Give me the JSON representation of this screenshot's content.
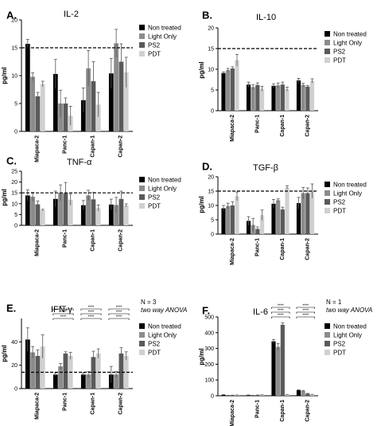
{
  "colors": {
    "non_treated": "#000000",
    "light_only": "#8c8c8c",
    "ps2": "#5a5a5a",
    "pdt": "#d0d0d0"
  },
  "chart_data": [
    {
      "type": "bar",
      "panel": "A.",
      "title": "IL-2",
      "ylabel": "pg/ml",
      "categories": [
        "Miapaca-2",
        "Panc-1",
        "Capan-1",
        "Capan-2"
      ],
      "ylim": [
        0,
        20
      ],
      "yticks": [
        "0",
        "5",
        "10",
        "15",
        "20"
      ],
      "threshold": 15,
      "legend": [
        "Non treated",
        "Light Only",
        "PS2",
        "PDT"
      ],
      "series": [
        {
          "name": "Non treated",
          "values": [
            15.7,
            10.3,
            5.6,
            10.4
          ],
          "errors": [
            0.8,
            2.6,
            2.2,
            2.7
          ]
        },
        {
          "name": "Light Only",
          "values": [
            9.8,
            5.0,
            11.3,
            15.8
          ],
          "errors": [
            0.7,
            2.4,
            3.2,
            2.5
          ]
        },
        {
          "name": "PS2",
          "values": [
            6.3,
            5.0,
            9.0,
            12.5
          ],
          "errors": [
            0.7,
            1.0,
            3.5,
            3.2
          ]
        },
        {
          "name": "PDT",
          "values": [
            8.5,
            2.8,
            4.8,
            10.6
          ],
          "errors": [
            0.5,
            1.7,
            2.2,
            2.7
          ]
        }
      ],
      "annotations": []
    },
    {
      "type": "bar",
      "panel": "B.",
      "title": "IL-10",
      "ylabel": "pg/ml",
      "categories": [
        "Miapaca-2",
        "Panc-1",
        "Capan-1",
        "Capan-2"
      ],
      "ylim": [
        0,
        20
      ],
      "yticks": [
        "0",
        "5",
        "10",
        "15",
        "20"
      ],
      "threshold": 15,
      "legend": [
        "Non treated",
        "Light Only",
        "PS2",
        "PDT"
      ],
      "series": [
        {
          "name": "Non treated",
          "values": [
            9.1,
            6.3,
            6.0,
            7.3
          ],
          "errors": [
            0.3,
            0.6,
            0.5,
            0.5
          ]
        },
        {
          "name": "Light Only",
          "values": [
            9.8,
            5.7,
            6.1,
            6.2
          ],
          "errors": [
            0.4,
            0.6,
            0.6,
            0.4
          ]
        },
        {
          "name": "PS2",
          "values": [
            10.2,
            6.2,
            6.3,
            5.8
          ],
          "errors": [
            0.4,
            0.5,
            0.6,
            0.3
          ]
        },
        {
          "name": "PDT",
          "values": [
            12.2,
            5.3,
            5.2,
            7.2
          ],
          "errors": [
            1.4,
            0.6,
            0.5,
            0.5
          ]
        }
      ],
      "annotations": []
    },
    {
      "type": "bar",
      "panel": "C.",
      "title": "TNF-α",
      "ylabel": "pg/ml",
      "categories": [
        "Miapaca-2",
        "Panc-1",
        "Capan-1",
        "Capan-2"
      ],
      "ylim": [
        0,
        25
      ],
      "yticks": [
        "0",
        "5",
        "10",
        "15",
        "20",
        "25"
      ],
      "threshold": 15,
      "legend": [
        "Non treated",
        "Light Only",
        "PS2",
        "PDT"
      ],
      "series": [
        {
          "name": "Non treated",
          "values": [
            13.8,
            12.2,
            9.3,
            9.6
          ],
          "errors": [
            2.6,
            3.6,
            2.2,
            2.5
          ]
        },
        {
          "name": "Light Only",
          "values": [
            13.2,
            15.0,
            13.8,
            9.4
          ],
          "errors": [
            2.0,
            3.7,
            2.4,
            3.5
          ]
        },
        {
          "name": "PS2",
          "values": [
            9.7,
            14.8,
            12.0,
            12.2
          ],
          "errors": [
            1.5,
            5.0,
            3.2,
            3.6
          ]
        },
        {
          "name": "PDT",
          "values": [
            7.0,
            11.8,
            8.0,
            9.2
          ],
          "errors": [
            0.4,
            2.6,
            1.4,
            0.7
          ]
        }
      ],
      "annotations": []
    },
    {
      "type": "bar",
      "panel": "D.",
      "title": "TGF-β",
      "ylabel": "pg/ml",
      "categories": [
        "Miapaca-2",
        "Panc-1",
        "Capan-1",
        "Capan-2"
      ],
      "ylim": [
        0,
        20
      ],
      "yticks": [
        "0",
        "5",
        "10",
        "15",
        "20"
      ],
      "threshold": 15,
      "legend": [
        "Non treated",
        "Light Only",
        "PS2",
        "PDT"
      ],
      "series": [
        {
          "name": "Non treated",
          "values": [
            9.0,
            4.6,
            10.6,
            10.8
          ],
          "errors": [
            1.0,
            1.5,
            1.5,
            2.0
          ]
        },
        {
          "name": "Light Only",
          "values": [
            9.8,
            3.2,
            11.8,
            14.3
          ],
          "errors": [
            1.0,
            2.3,
            0.5,
            2.0
          ]
        },
        {
          "name": "PS2",
          "values": [
            10.0,
            1.8,
            8.6,
            14.3
          ],
          "errors": [
            1.3,
            0.7,
            0.8,
            1.8
          ]
        },
        {
          "name": "PDT",
          "values": [
            13.2,
            6.6,
            16.3,
            15.0
          ],
          "errors": [
            1.5,
            1.8,
            0.6,
            2.5
          ]
        }
      ],
      "annotations": []
    },
    {
      "type": "bar",
      "panel": "E.",
      "title": "IFN-γ",
      "ylabel": "pg/ml",
      "categories": [
        "Miapaca-2",
        "Panc-1",
        "Capan-1",
        "Capan-2"
      ],
      "ylim": [
        0,
        60
      ],
      "yticks": [
        "0",
        "20",
        "40"
      ],
      "threshold": 14,
      "legend": [
        "Non treated",
        "Light Only",
        "PS2",
        "PDT"
      ],
      "series": [
        {
          "name": "Non treated",
          "values": [
            42,
            12,
            12,
            12
          ],
          "errors": [
            10,
            1.5,
            1.5,
            7
          ]
        },
        {
          "name": "Light Only",
          "values": [
            31,
            19,
            12,
            12
          ],
          "errors": [
            5,
            2.5,
            2.5,
            2.5
          ]
        },
        {
          "name": "PS2",
          "values": [
            28,
            30,
            27,
            30
          ],
          "errors": [
            5,
            1.5,
            5,
            5
          ]
        },
        {
          "name": "PDT",
          "values": [
            36,
            28,
            30,
            28
          ],
          "errors": [
            10,
            3,
            4,
            3.5
          ]
        }
      ],
      "annotations": [
        "N = 3",
        "two way ANOVA"
      ],
      "significance": [
        "****",
        "****",
        "****",
        "****",
        "****",
        "****",
        "****",
        "****",
        "****"
      ]
    },
    {
      "type": "bar",
      "panel": "F.",
      "title": "IL-6",
      "ylabel": "pg/ml",
      "categories": [
        "Miapaca-2",
        "Panc-1",
        "Capan-1",
        "Capan-2"
      ],
      "ylim": [
        0,
        500
      ],
      "yticks": [
        "0",
        "100",
        "200",
        "300",
        "400",
        "500"
      ],
      "threshold": null,
      "legend": [
        "Non treated",
        "Light Only",
        "PS2",
        "PDT"
      ],
      "series": [
        {
          "name": "Non treated",
          "values": [
            5,
            4,
            345,
            35
          ],
          "errors": [
            2,
            1,
            12,
            3
          ]
        },
        {
          "name": "Light Only",
          "values": [
            2,
            2,
            310,
            30
          ],
          "errors": [
            1,
            1,
            22,
            3
          ]
        },
        {
          "name": "PS2",
          "values": [
            3,
            4,
            450,
            13
          ],
          "errors": [
            1,
            1,
            12,
            2
          ]
        },
        {
          "name": "PDT",
          "values": [
            4,
            5,
            6,
            8
          ],
          "errors": [
            1,
            1,
            1,
            1
          ]
        }
      ],
      "annotations": [
        "N = 1",
        "two way ANOVA"
      ],
      "significance": [
        "****",
        "****",
        "****",
        "****",
        "****",
        "****"
      ]
    }
  ]
}
